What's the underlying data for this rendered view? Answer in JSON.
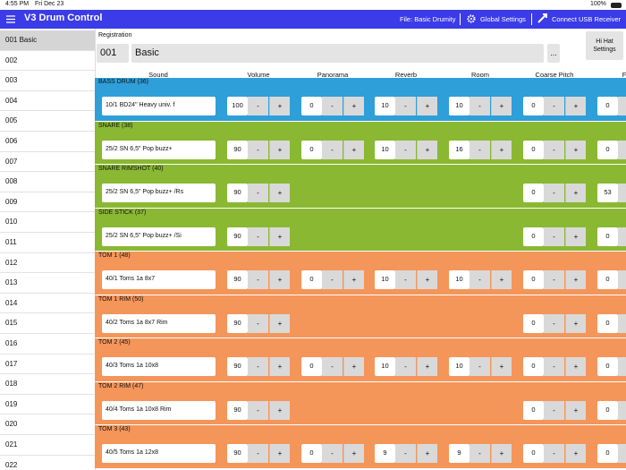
{
  "status_bar": {
    "time": "4:55 PM",
    "date": "Fri Dec 23",
    "battery": "100%"
  },
  "header": {
    "title": "V3 Drum Control",
    "file": "File: Basic Drumity",
    "global_settings": "Global Settings",
    "connect": "Connect USB Receiver"
  },
  "sidebar": {
    "selected": 0,
    "items": [
      "001 Basic",
      "002",
      "003",
      "004",
      "005",
      "006",
      "007",
      "008",
      "009",
      "010",
      "011",
      "012",
      "013",
      "014",
      "015",
      "016",
      "017",
      "018",
      "019",
      "020",
      "021",
      "022"
    ]
  },
  "registration": {
    "label": "Registration",
    "number": "001",
    "name": "Basic",
    "more": "...",
    "hihat": "Hi Hat Settings"
  },
  "stepper": {
    "minus": "-",
    "plus": "+"
  },
  "table": {
    "columns": [
      "Sound",
      "Volume",
      "Panorama",
      "Reverb",
      "Room",
      "Coarse Pitch",
      "Fine"
    ],
    "rows": [
      {
        "name": "BASS DRUM (36)",
        "color": "#2e9fd8",
        "sound": "10/1 BD24\"  Heavy  univ.  f",
        "values": [
          100,
          0,
          10,
          10,
          0,
          0
        ]
      },
      {
        "name": "SNARE (38)",
        "color": "#8ab833",
        "sound": "25/2  SN 6,5\"  Pop  buzz+",
        "values": [
          90,
          0,
          10,
          16,
          0,
          0
        ]
      },
      {
        "name": "SNARE RIMSHOT (40)",
        "color": "#8ab833",
        "sound": "25/2  SN 6,5\"  Pop  buzz+  /Rs",
        "values": [
          90,
          null,
          null,
          null,
          0,
          53
        ]
      },
      {
        "name": "SIDE STICK (37)",
        "color": "#8ab833",
        "sound": "25/2  SN 6,5\"  Pop  buzz+  /Si",
        "values": [
          90,
          null,
          null,
          null,
          0,
          0
        ]
      },
      {
        "name": "TOM 1 (48)",
        "color": "#f4955a",
        "sound": "40/1  Toms 1a  8x7",
        "values": [
          90,
          0,
          10,
          10,
          0,
          0
        ]
      },
      {
        "name": "TOM 1 RIM (50)",
        "color": "#f4955a",
        "sound": "40/2  Toms 1a  8x7 Rim",
        "values": [
          90,
          null,
          null,
          null,
          0,
          0
        ]
      },
      {
        "name": "TOM 2 (45)",
        "color": "#f4955a",
        "sound": "40/3  Toms 1a  10x8",
        "values": [
          90,
          0,
          10,
          10,
          0,
          0
        ]
      },
      {
        "name": "TOM 2 RIM (47)",
        "color": "#f4955a",
        "sound": "40/4  Toms 1a  10x8 Rim",
        "values": [
          90,
          null,
          null,
          null,
          0,
          0
        ]
      },
      {
        "name": "TOM 3 (43)",
        "color": "#f4955a",
        "sound": "40/5  Toms 1a  12x8",
        "values": [
          90,
          0,
          9,
          9,
          0,
          0
        ]
      }
    ]
  }
}
